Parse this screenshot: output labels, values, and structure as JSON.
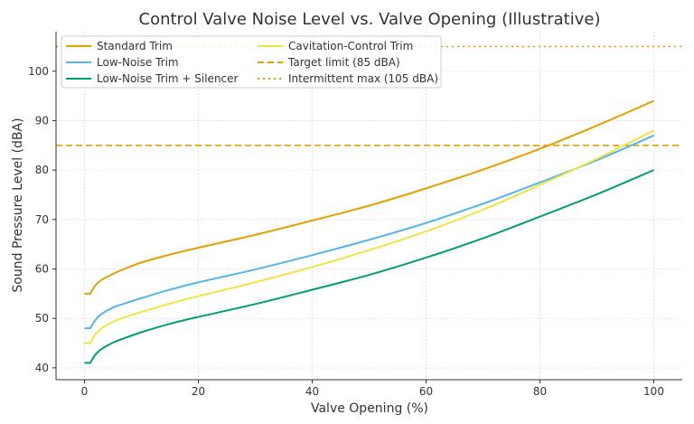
{
  "chart_data": {
    "type": "line",
    "title": "Control Valve Noise Level vs. Valve Opening (Illustrative)",
    "xlabel": "Valve Opening (%)",
    "ylabel": "Sound Pressure Level (dBA)",
    "xlim": [
      -5,
      105
    ],
    "ylim": [
      37.6,
      108
    ],
    "xticks": [
      0,
      20,
      40,
      60,
      80,
      100
    ],
    "yticks": [
      40,
      50,
      60,
      70,
      80,
      90,
      100
    ],
    "grid": true,
    "legend_placement": "top-left",
    "x": [
      0,
      1,
      2,
      3,
      5,
      7,
      10,
      15,
      20,
      30,
      40,
      50,
      60,
      70,
      80,
      90,
      100
    ],
    "series": [
      {
        "name": "Standard Trim",
        "color": "#E69F00",
        "style": "solid",
        "values": [
          55,
          55,
          56.8,
          57.8,
          59.0,
          60.0,
          61.3,
          62.9,
          64.3,
          66.9,
          69.8,
          72.8,
          76.3,
          80.1,
          84.3,
          89.0,
          94
        ]
      },
      {
        "name": "Low-Noise Trim",
        "color": "#56B4E9",
        "style": "solid",
        "values": [
          48,
          48,
          49.8,
          50.9,
          52.2,
          53.0,
          54.1,
          55.8,
          57.3,
          59.9,
          62.8,
          65.9,
          69.3,
          73.2,
          77.5,
          82.0,
          87
        ]
      },
      {
        "name": "Low-Noise Trim + Silencer",
        "color": "#009E73",
        "style": "solid",
        "values": [
          41,
          41,
          42.8,
          43.8,
          45.1,
          46.0,
          47.2,
          48.9,
          50.3,
          52.9,
          55.8,
          58.8,
          62.3,
          66.2,
          70.6,
          75.1,
          80
        ]
      },
      {
        "name": "Cavitation-Control Trim",
        "color": "#F0E442",
        "style": "solid",
        "values": [
          45,
          45,
          46.9,
          48.0,
          49.3,
          50.2,
          51.3,
          53.0,
          54.5,
          57.3,
          60.4,
          63.8,
          67.6,
          72.0,
          77.0,
          82.3,
          88
        ]
      }
    ],
    "hlines": [
      {
        "name": "Target limit (85 dBA)",
        "y": 85,
        "color": "#E69F00",
        "style": "dashed"
      },
      {
        "name": "Intermittent max (105 dBA)",
        "y": 105,
        "color": "#E69F00",
        "style": "dotted"
      }
    ]
  }
}
